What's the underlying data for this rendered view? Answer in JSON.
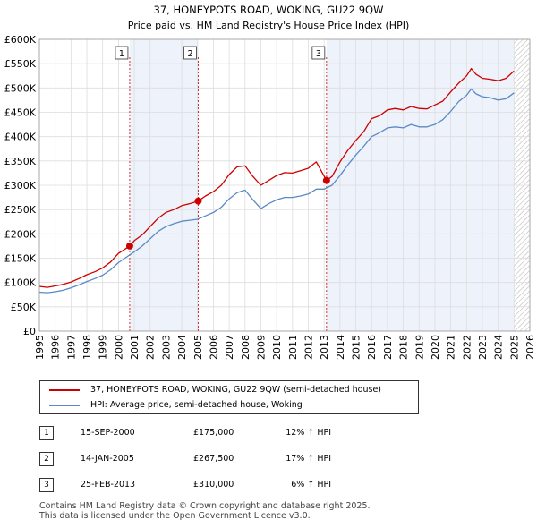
{
  "chart_data": {
    "type": "line",
    "title": "37, HONEYPOTS ROAD, WOKING, GU22 9QW",
    "subtitle": "Price paid vs. HM Land Registry's House Price Index (HPI)",
    "xlim": [
      1995,
      2026
    ],
    "ylim": [
      0,
      600000
    ],
    "x_ticks": [
      "1995",
      "1996",
      "1997",
      "1998",
      "1999",
      "2000",
      "2001",
      "2002",
      "2003",
      "2004",
      "2005",
      "2006",
      "2007",
      "2008",
      "2009",
      "2010",
      "2011",
      "2012",
      "2013",
      "2014",
      "2015",
      "2016",
      "2017",
      "2018",
      "2019",
      "2020",
      "2021",
      "2022",
      "2023",
      "2024",
      "2025",
      "2026"
    ],
    "y_ticks": [
      {
        "value": 0,
        "label": "£0"
      },
      {
        "value": 50000,
        "label": "£50K"
      },
      {
        "value": 100000,
        "label": "£100K"
      },
      {
        "value": 150000,
        "label": "£150K"
      },
      {
        "value": 200000,
        "label": "£200K"
      },
      {
        "value": 250000,
        "label": "£250K"
      },
      {
        "value": 300000,
        "label": "£300K"
      },
      {
        "value": 350000,
        "label": "£350K"
      },
      {
        "value": 400000,
        "label": "£400K"
      },
      {
        "value": 450000,
        "label": "£450K"
      },
      {
        "value": 500000,
        "label": "£500K"
      },
      {
        "value": 550000,
        "label": "£550K"
      },
      {
        "value": 600000,
        "label": "£600K"
      }
    ],
    "grid": true,
    "future_hatch_from": 2025.0,
    "shaded_periods": [
      [
        2000.71,
        2005.04
      ],
      [
        2013.15,
        2025.0
      ]
    ],
    "series": [
      {
        "name": "37, HONEYPOTS ROAD, WOKING, GU22 9QW (semi-detached house)",
        "color": "#cc0000",
        "x": [
          1995,
          1995.5,
          1996,
          1996.5,
          1997,
          1997.5,
          1998,
          1998.5,
          1999,
          1999.5,
          2000,
          2000.71,
          2001,
          2001.5,
          2002,
          2002.5,
          2003,
          2003.5,
          2004,
          2004.5,
          2005.04,
          2005.5,
          2006,
          2006.5,
          2007,
          2007.5,
          2008,
          2008.5,
          2009,
          2009.5,
          2010,
          2010.5,
          2011,
          2011.5,
          2012,
          2012.5,
          2013.15,
          2013.5,
          2014,
          2014.5,
          2015,
          2015.5,
          2016,
          2016.5,
          2017,
          2017.5,
          2018,
          2018.5,
          2019,
          2019.5,
          2020,
          2020.5,
          2021,
          2021.5,
          2022,
          2022.3,
          2022.6,
          2023,
          2023.5,
          2024,
          2024.5,
          2025
        ],
        "y": [
          92000,
          90000,
          93000,
          96000,
          101000,
          108000,
          116000,
          122000,
          130000,
          142000,
          160000,
          175000,
          186000,
          198000,
          215000,
          232000,
          244000,
          250000,
          258000,
          262000,
          267500,
          278000,
          287000,
          300000,
          322000,
          338000,
          340000,
          318000,
          300000,
          310000,
          320000,
          326000,
          325000,
          330000,
          335000,
          348000,
          310000,
          318000,
          348000,
          372000,
          392000,
          410000,
          437000,
          443000,
          455000,
          458000,
          455000,
          462000,
          458000,
          457000,
          465000,
          473000,
          492000,
          510000,
          525000,
          540000,
          528000,
          520000,
          518000,
          515000,
          520000,
          535000
        ]
      },
      {
        "name": "HPI: Average price, semi-detached house, Woking",
        "color": "#5a8ac6",
        "x": [
          1995,
          1995.5,
          1996,
          1996.5,
          1997,
          1997.5,
          1998,
          1998.5,
          1999,
          1999.5,
          2000,
          2000.5,
          2001,
          2001.5,
          2002,
          2002.5,
          2003,
          2003.5,
          2004,
          2004.5,
          2005,
          2005.5,
          2006,
          2006.5,
          2007,
          2007.5,
          2008,
          2008.5,
          2009,
          2009.5,
          2010,
          2010.5,
          2011,
          2011.5,
          2012,
          2012.5,
          2013,
          2013.5,
          2014,
          2014.5,
          2015,
          2015.5,
          2016,
          2016.5,
          2017,
          2017.5,
          2018,
          2018.5,
          2019,
          2019.5,
          2020,
          2020.5,
          2021,
          2021.5,
          2022,
          2022.3,
          2022.6,
          2023,
          2023.5,
          2024,
          2024.5,
          2025
        ],
        "y": [
          80000,
          79000,
          81000,
          84000,
          89000,
          95000,
          102000,
          108000,
          115000,
          126000,
          141000,
          152000,
          163000,
          175000,
          190000,
          205000,
          215000,
          221000,
          226000,
          228000,
          230000,
          237000,
          244000,
          255000,
          272000,
          285000,
          290000,
          270000,
          252000,
          262000,
          270000,
          275000,
          275000,
          278000,
          282000,
          292000,
          292000,
          300000,
          320000,
          342000,
          362000,
          380000,
          400000,
          408000,
          418000,
          420000,
          418000,
          425000,
          420000,
          420000,
          425000,
          435000,
          452000,
          472000,
          485000,
          498000,
          488000,
          482000,
          480000,
          475000,
          478000,
          490000
        ]
      }
    ],
    "markers": [
      {
        "label": "1",
        "x": 2000.71,
        "y": 175000
      },
      {
        "label": "2",
        "x": 2005.04,
        "y": 267500
      },
      {
        "label": "3",
        "x": 2013.15,
        "y": 310000
      }
    ]
  },
  "legend": {
    "items": [
      {
        "label": "37, HONEYPOTS ROAD, WOKING, GU22 9QW (semi-detached house)",
        "color": "#cc0000"
      },
      {
        "label": "HPI: Average price, semi-detached house, Woking",
        "color": "#5a8ac6"
      }
    ]
  },
  "sales": [
    {
      "num": "1",
      "date": "15-SEP-2000",
      "price": "£175,000",
      "hpi": "12% ↑ HPI"
    },
    {
      "num": "2",
      "date": "14-JAN-2005",
      "price": "£267,500",
      "hpi": "17% ↑ HPI"
    },
    {
      "num": "3",
      "date": "25-FEB-2013",
      "price": "£310,000",
      "hpi": "6% ↑ HPI"
    }
  ],
  "footer": {
    "line1": "Contains HM Land Registry data © Crown copyright and database right 2025.",
    "line2": "This data is licensed under the Open Government Licence v3.0."
  }
}
